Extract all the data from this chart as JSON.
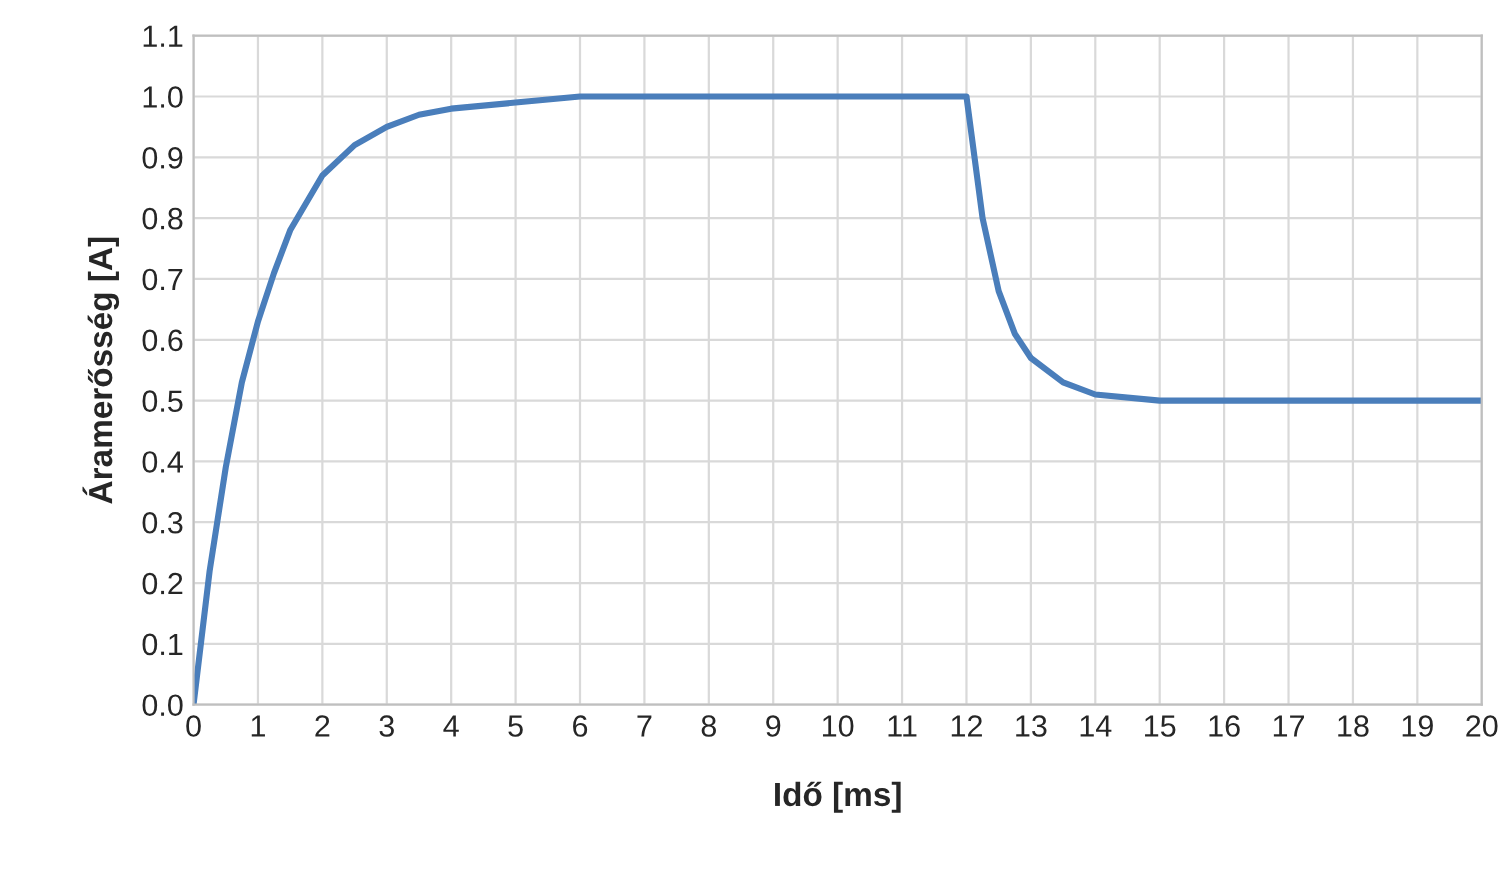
{
  "chart_data": {
    "type": "line",
    "xlabel": "Idő [ms]",
    "ylabel": "Áramerősség [A]",
    "x": [
      0,
      0.25,
      0.5,
      0.75,
      1,
      1.25,
      1.5,
      2,
      2.5,
      3,
      3.5,
      4,
      5,
      6,
      7,
      8,
      9,
      10,
      11,
      12,
      12.25,
      12.5,
      12.75,
      13,
      13.5,
      14,
      15,
      16,
      20
    ],
    "series": [
      {
        "color": "#4a7ebb",
        "values": [
          0,
          0.22,
          0.39,
          0.53,
          0.63,
          0.71,
          0.78,
          0.87,
          0.92,
          0.95,
          0.97,
          0.98,
          0.99,
          1.0,
          1.0,
          1.0,
          1.0,
          1.0,
          1.0,
          1.0,
          0.8,
          0.68,
          0.61,
          0.57,
          0.53,
          0.51,
          0.5,
          0.5,
          0.5
        ]
      }
    ],
    "xlim": [
      0,
      20
    ],
    "xticks": [
      0,
      1,
      2,
      3,
      4,
      5,
      6,
      7,
      8,
      9,
      10,
      11,
      12,
      13,
      14,
      15,
      16,
      17,
      18,
      19,
      20
    ],
    "ylim": [
      0,
      1.1
    ],
    "yticks": [
      {
        "value": 0,
        "label": "0.0"
      },
      {
        "value": 0.1,
        "label": "0.1"
      },
      {
        "value": 0.2,
        "label": "0.2"
      },
      {
        "value": 0.3,
        "label": "0.3"
      },
      {
        "value": 0.4,
        "label": "0.4"
      },
      {
        "value": 0.5,
        "label": "0.5"
      },
      {
        "value": 0.6,
        "label": "0.6"
      },
      {
        "value": 0.7,
        "label": "0.7"
      },
      {
        "value": 0.8,
        "label": "0.8"
      },
      {
        "value": 0.9,
        "label": "0.9"
      },
      {
        "value": 1.0,
        "label": "1.0"
      },
      {
        "value": 1.1,
        "label": "1.1"
      }
    ],
    "grid": true,
    "marker": "none",
    "line_style": "solid"
  }
}
